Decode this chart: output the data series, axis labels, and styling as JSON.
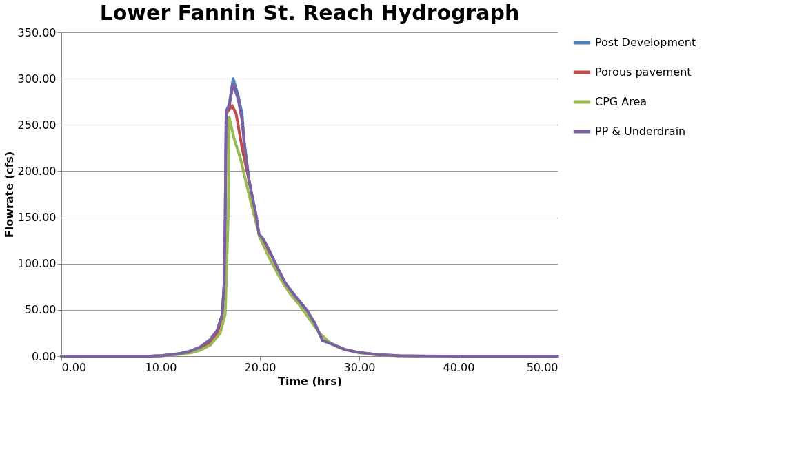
{
  "chart_data": {
    "type": "line",
    "title": "Lower Fannin St. Reach Hydrograph",
    "xlabel": "Time (hrs)",
    "ylabel": "Flowrate (cfs)",
    "xlim": [
      0,
      50
    ],
    "xticks": [
      {
        "value": 0,
        "label": "0.00"
      },
      {
        "value": 10,
        "label": "10.00"
      },
      {
        "value": 20,
        "label": "20.00"
      },
      {
        "value": 30,
        "label": "30.00"
      },
      {
        "value": 40,
        "label": "40.00"
      },
      {
        "value": 50,
        "label": "50.00"
      }
    ],
    "ylim": [
      0,
      350
    ],
    "yticks": [
      {
        "value": 0,
        "label": "0.00"
      },
      {
        "value": 50,
        "label": "50.00"
      },
      {
        "value": 100,
        "label": "100.00"
      },
      {
        "value": 150,
        "label": "150.00"
      },
      {
        "value": 200,
        "label": "200.00"
      },
      {
        "value": 250,
        "label": "250.00"
      },
      {
        "value": 300,
        "label": "300.00"
      },
      {
        "value": 350,
        "label": "350.00"
      }
    ],
    "grid": "y",
    "legend": "right",
    "marker": "none",
    "line_style": "solid",
    "series": [
      {
        "name": "Post Development",
        "color": "#4a7ebb",
        "x": [
          0,
          9,
          10,
          11,
          12,
          13,
          14,
          15,
          15.7,
          16.2,
          16.4,
          16.5,
          16.6,
          16.9,
          17.3,
          17.8,
          18.2,
          18.4,
          18.9,
          19.6,
          19.9,
          20.3,
          21,
          21.7,
          22.5,
          23.4,
          24.7,
          25.5,
          26.3,
          27.5,
          28.6,
          30,
          32,
          34
        ],
        "values": [
          0,
          0,
          0.5,
          1.5,
          3,
          5.5,
          10,
          18,
          28,
          45,
          80,
          150,
          265,
          272,
          300,
          282,
          262,
          233,
          190,
          153,
          132,
          127,
          113,
          97,
          80,
          67,
          50,
          36,
          17,
          12,
          7,
          4,
          1.5,
          0.5
        ]
      },
      {
        "name": "Porous pavement",
        "color": "#be4b48",
        "x": [
          10,
          11,
          12,
          13,
          14,
          15,
          15.7,
          16.2,
          16.4,
          16.5,
          16.6,
          17.2,
          17.6,
          18.2,
          19,
          19.9,
          20.3,
          21
        ],
        "values": [
          0.4,
          1.2,
          null,
          null,
          8.5,
          15,
          25,
          42,
          null,
          null,
          262,
          271,
          262,
          225,
          185,
          null,
          125,
          111
        ]
      },
      {
        "name": "CPG Area",
        "color": "#98b954",
        "x": [
          0,
          9,
          10,
          11,
          12,
          13,
          14,
          15,
          16,
          16.5,
          16.8,
          16.9,
          17.4,
          18,
          19,
          20,
          21,
          22,
          23,
          24,
          25,
          26,
          27,
          28,
          30,
          32,
          34,
          36
        ],
        "values": [
          0,
          0,
          0.3,
          1,
          2,
          3.5,
          6.5,
          12,
          25,
          45,
          150,
          258,
          235,
          215,
          170,
          128,
          105,
          85,
          68,
          55,
          40,
          25,
          15,
          9,
          3.5,
          1.2,
          0.4,
          0.1
        ]
      },
      {
        "name": "PP & Underdrain",
        "color": "#7d60a0",
        "x": [
          0,
          9,
          10,
          11,
          12,
          13,
          14,
          15,
          15.7,
          16.2,
          16.4,
          16.5,
          16.6,
          16.9,
          17.3,
          17.8,
          18.2,
          18.4,
          18.9,
          19.6,
          19.9,
          20.3,
          21,
          21.7,
          22.5,
          23.4,
          24.7,
          25.5,
          26.3,
          27.5,
          28.6,
          30,
          32,
          34,
          36,
          40,
          50
        ],
        "values": [
          0,
          0,
          0.5,
          1.5,
          3,
          5.5,
          10,
          18,
          28,
          45,
          80,
          150,
          265,
          270,
          294,
          278,
          255,
          232,
          190,
          153,
          132,
          127,
          113,
          97,
          80,
          67,
          50,
          36,
          17,
          12,
          7,
          4,
          1.5,
          0.5,
          0.2,
          0,
          0
        ]
      }
    ]
  }
}
